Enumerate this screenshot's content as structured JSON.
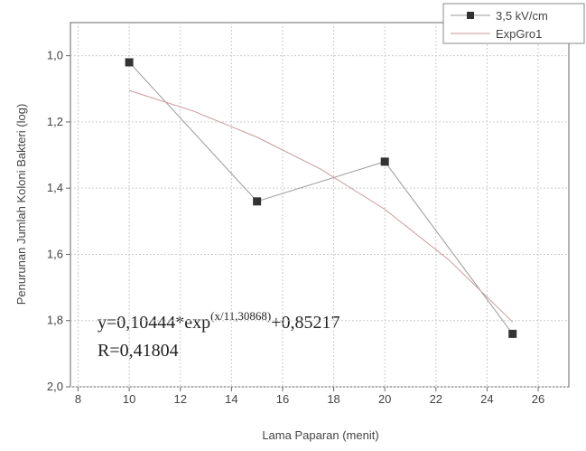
{
  "chart_data": {
    "type": "line",
    "x_label": "Lama Paparan (menit)",
    "y_label": "Penurunan Jumlah Koloni Bakteri (log)",
    "xlim": [
      7.7,
      27.2
    ],
    "xticks": [
      8,
      10,
      12,
      14,
      16,
      18,
      20,
      22,
      24,
      26
    ],
    "ylim": [
      0.9,
      2.0
    ],
    "y_inverted": true,
    "yticks": [
      {
        "value": 1.0,
        "label": "1,0"
      },
      {
        "value": 1.2,
        "label": "1,2"
      },
      {
        "value": 1.4,
        "label": "1,4"
      },
      {
        "value": 1.6,
        "label": "1,6"
      },
      {
        "value": 1.8,
        "label": "1,8"
      },
      {
        "value": 2.0,
        "label": "2,0"
      }
    ],
    "grid": true,
    "legend": "top-right",
    "series": [
      {
        "name": "3,5 kV/cm",
        "color": "#333333",
        "marker": "square",
        "x": [
          10,
          15,
          20,
          25
        ],
        "values": [
          1.02,
          1.44,
          1.32,
          1.84
        ]
      },
      {
        "name": "ExpGro1",
        "color": "#c99a9a",
        "marker": "none",
        "x": [
          10,
          12.5,
          15,
          17.5,
          20,
          22.5,
          25
        ],
        "values": [
          1.105,
          1.167,
          1.246,
          1.343,
          1.464,
          1.616,
          1.804
        ]
      }
    ],
    "annotation": {
      "equation_main": "y=0,10444*exp",
      "equation_exponent": "(x/11,30868)",
      "equation_tail": "+0,85217",
      "r_value": "R=0,41804"
    }
  }
}
